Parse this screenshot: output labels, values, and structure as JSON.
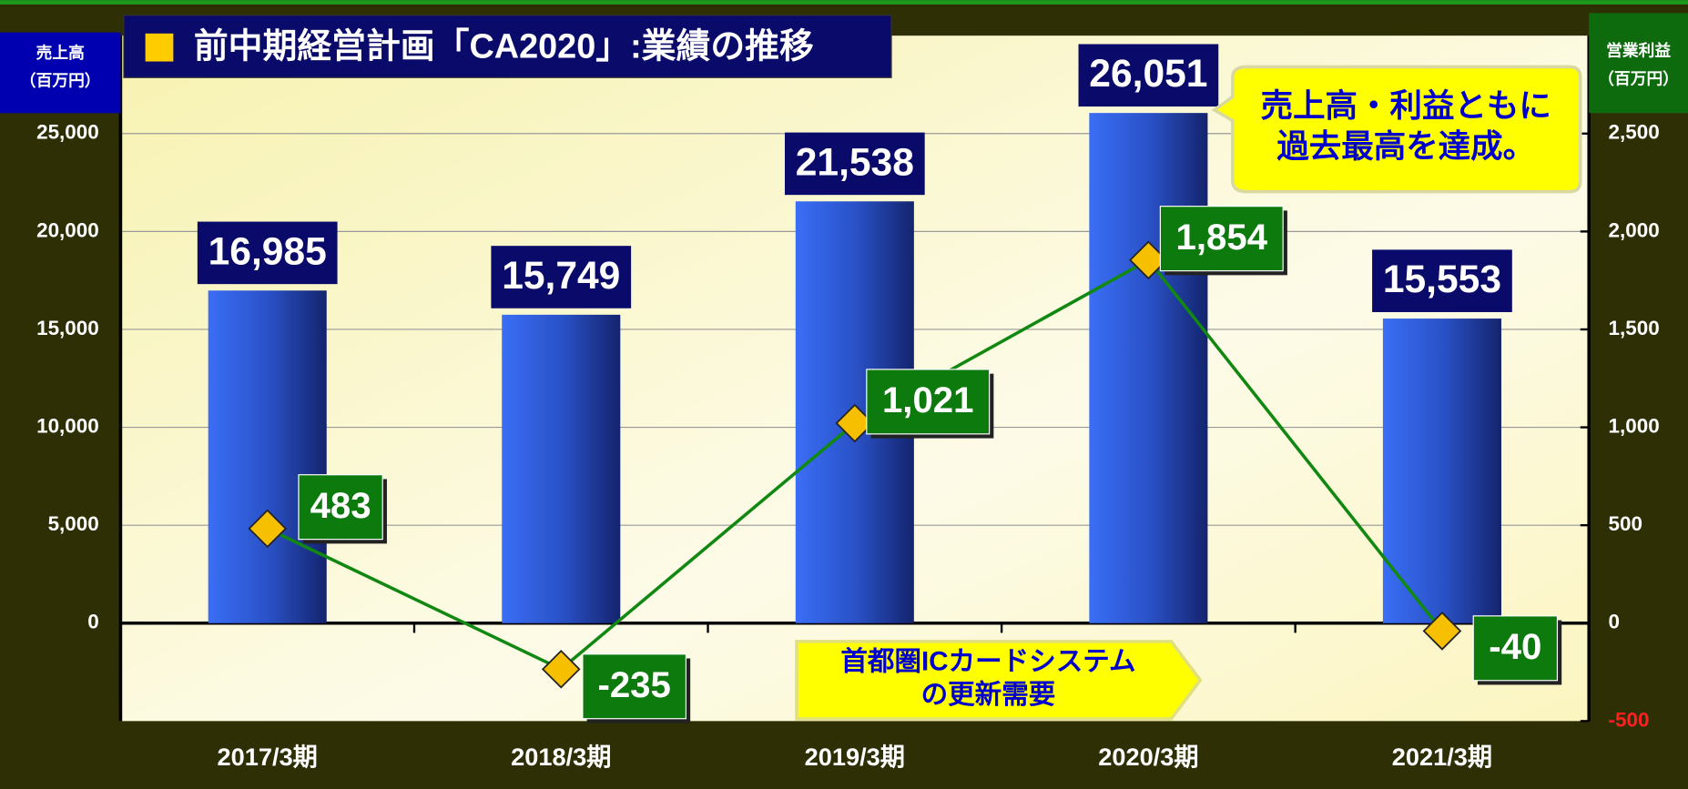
{
  "chart_data": {
    "type": "bar",
    "title": "前中期経営計画「CA2020」:業績の推移",
    "y_label": [
      "売上高",
      "（百万円）"
    ],
    "y2_label": [
      "営業利益",
      "（百万円）"
    ],
    "categories": [
      "2017/3期",
      "2018/3期",
      "2019/3期",
      "2020/3期",
      "2021/3期"
    ],
    "series": [
      {
        "name": "売上高",
        "type": "bar",
        "color": "#2f5fe0",
        "values": [
          16985,
          15749,
          21538,
          26051,
          15553
        ],
        "value_labels": [
          "16,985",
          "15,749",
          "21,538",
          "26,051",
          "15,553"
        ]
      },
      {
        "name": "営業利益",
        "type": "line",
        "axis": "y2",
        "color": "#118811",
        "marker_color": "#f6c000",
        "values": [
          483,
          -235,
          1021,
          1854,
          -40
        ],
        "value_labels": [
          "483",
          "-235",
          "1,021",
          "1,854",
          "-40"
        ]
      }
    ],
    "ylim": [
      -5000,
      30000
    ],
    "yticks": [
      0,
      {
        "value": 5000,
        "label": "5,000"
      },
      {
        "value": 10000,
        "label": "10,000"
      },
      {
        "value": 15000,
        "label": "15,000"
      },
      {
        "value": 20000,
        "label": "20,000"
      },
      {
        "value": 25000,
        "label": "25,000"
      }
    ],
    "y2lim": [
      -500,
      3000
    ],
    "y2ticks": [
      -500,
      0,
      500,
      {
        "value": 1000,
        "label": "1,000"
      },
      {
        "value": 1500,
        "label": "1,500"
      },
      {
        "value": 2000,
        "label": "2,000"
      },
      {
        "value": 2500,
        "label": "2,500"
      }
    ],
    "grid": true,
    "annotations": [
      {
        "text": [
          "売上高・利益ともに",
          "過去最高を達成。"
        ]
      },
      {
        "text": [
          "首都圏ICカードシステム",
          "の更新需要"
        ]
      }
    ]
  }
}
